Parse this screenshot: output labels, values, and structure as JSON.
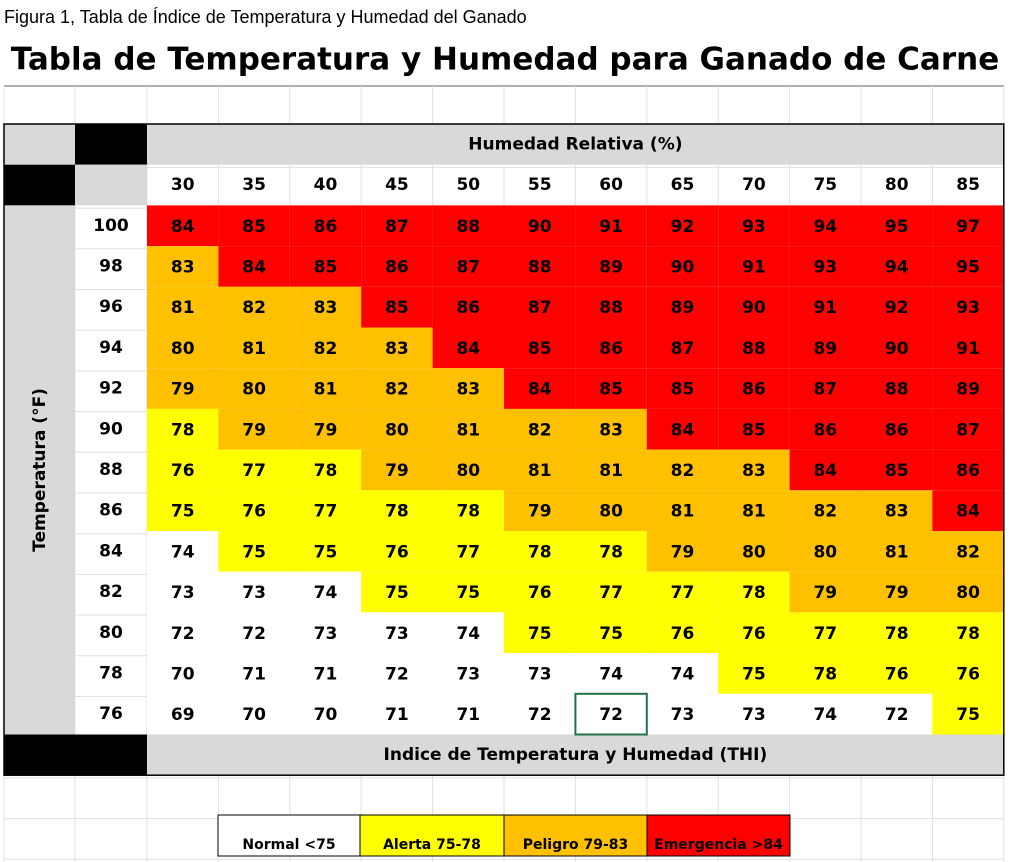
{
  "caption": "Figura 1, Tabla de Índice de Temperatura y Humedad del Ganado",
  "title": "Tabla de Temperatura y Humedad para Ganado de Carne",
  "table": {
    "column_header": "Humedad Relativa (%)",
    "row_header": "Temperatura (°F)",
    "footer": "Indice de Temperatura y Humedad (THI)",
    "columns": [
      30,
      35,
      40,
      45,
      50,
      55,
      60,
      65,
      70,
      75,
      80,
      85
    ],
    "rows": [
      {
        "temp": 100,
        "values": [
          84,
          85,
          86,
          87,
          88,
          90,
          91,
          92,
          93,
          94,
          95,
          97
        ],
        "levels": [
          3,
          3,
          3,
          3,
          3,
          3,
          3,
          3,
          3,
          3,
          3,
          3
        ]
      },
      {
        "temp": 98,
        "values": [
          83,
          84,
          85,
          86,
          87,
          88,
          89,
          90,
          91,
          93,
          94,
          95
        ],
        "levels": [
          2,
          3,
          3,
          3,
          3,
          3,
          3,
          3,
          3,
          3,
          3,
          3
        ]
      },
      {
        "temp": 96,
        "values": [
          81,
          82,
          83,
          85,
          86,
          87,
          88,
          89,
          90,
          91,
          92,
          93
        ],
        "levels": [
          2,
          2,
          2,
          3,
          3,
          3,
          3,
          3,
          3,
          3,
          3,
          3
        ]
      },
      {
        "temp": 94,
        "values": [
          80,
          81,
          82,
          83,
          84,
          85,
          86,
          87,
          88,
          89,
          90,
          91
        ],
        "levels": [
          2,
          2,
          2,
          2,
          3,
          3,
          3,
          3,
          3,
          3,
          3,
          3
        ]
      },
      {
        "temp": 92,
        "values": [
          79,
          80,
          81,
          82,
          83,
          84,
          85,
          85,
          86,
          87,
          88,
          89
        ],
        "levels": [
          2,
          2,
          2,
          2,
          2,
          3,
          3,
          3,
          3,
          3,
          3,
          3
        ]
      },
      {
        "temp": 90,
        "values": [
          78,
          79,
          79,
          80,
          81,
          82,
          83,
          84,
          85,
          86,
          86,
          87
        ],
        "levels": [
          1,
          2,
          2,
          2,
          2,
          2,
          2,
          3,
          3,
          3,
          3,
          3
        ]
      },
      {
        "temp": 88,
        "values": [
          76,
          77,
          78,
          79,
          80,
          81,
          81,
          82,
          83,
          84,
          85,
          86
        ],
        "levels": [
          1,
          1,
          1,
          2,
          2,
          2,
          2,
          2,
          2,
          3,
          3,
          3
        ]
      },
      {
        "temp": 86,
        "values": [
          75,
          76,
          77,
          78,
          78,
          79,
          80,
          81,
          81,
          82,
          83,
          84
        ],
        "levels": [
          1,
          1,
          1,
          1,
          1,
          2,
          2,
          2,
          2,
          2,
          2,
          3
        ]
      },
      {
        "temp": 84,
        "values": [
          74,
          75,
          75,
          76,
          77,
          78,
          78,
          79,
          80,
          80,
          81,
          82
        ],
        "levels": [
          0,
          1,
          1,
          1,
          1,
          1,
          1,
          2,
          2,
          2,
          2,
          2
        ]
      },
      {
        "temp": 82,
        "values": [
          73,
          73,
          74,
          75,
          75,
          76,
          77,
          77,
          78,
          79,
          79,
          80
        ],
        "levels": [
          0,
          0,
          0,
          1,
          1,
          1,
          1,
          1,
          1,
          2,
          2,
          2
        ]
      },
      {
        "temp": 80,
        "values": [
          72,
          72,
          73,
          73,
          74,
          75,
          75,
          76,
          76,
          77,
          78,
          78
        ],
        "levels": [
          0,
          0,
          0,
          0,
          0,
          1,
          1,
          1,
          1,
          1,
          1,
          1
        ]
      },
      {
        "temp": 78,
        "values": [
          70,
          71,
          71,
          72,
          73,
          73,
          74,
          74,
          75,
          78,
          76,
          76
        ],
        "levels": [
          0,
          0,
          0,
          0,
          0,
          0,
          0,
          0,
          1,
          1,
          1,
          1
        ]
      },
      {
        "temp": 76,
        "values": [
          69,
          70,
          70,
          71,
          71,
          72,
          72,
          73,
          73,
          74,
          72,
          75
        ],
        "levels": [
          0,
          0,
          0,
          0,
          0,
          0,
          0,
          0,
          0,
          0,
          0,
          1
        ]
      }
    ]
  },
  "legend": [
    {
      "label": "Normal <75",
      "color": "#ffffff"
    },
    {
      "label": "Alerta 75-78",
      "color": "#ffff00"
    },
    {
      "label": "Peligro 79-83",
      "color": "#ffc000"
    },
    {
      "label": "Emergencia >84",
      "color": "#ff0000"
    }
  ]
}
